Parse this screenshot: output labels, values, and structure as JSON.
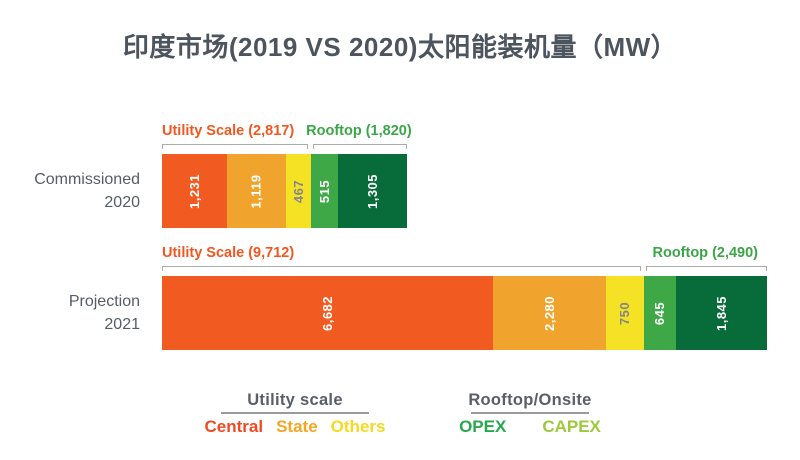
{
  "title": "印度市场(2019 VS 2020)太阳能装机量（MW）",
  "colors": {
    "title_text": "#4C545E",
    "axis_text": "#565D66",
    "bracket_line": "#ACACAC",
    "utility_bracket_label": "#F1571F",
    "rooftop_bracket_label": "#3BA648",
    "legend_title_text": "#585F68",
    "legend_underline": "#9B9B9B"
  },
  "chart_data": {
    "type": "bar",
    "stacked": true,
    "orientation": "horizontal",
    "unit": "MW",
    "title": "印度市场(2019 VS 2020)太阳能装机量（MW）",
    "categories": [
      "Commissioned 2020",
      "Projection 2021"
    ],
    "category_lines": [
      [
        "Commissioned",
        "2020"
      ],
      [
        "Projection",
        "2021"
      ]
    ],
    "series": [
      {
        "name": "Central",
        "group": "Utility scale",
        "values": [
          1231,
          6682
        ],
        "display": [
          "1,231",
          "6,682"
        ],
        "bar_color": "#F15B22",
        "value_label_color": "#FFFFFF"
      },
      {
        "name": "State",
        "group": "Utility scale",
        "values": [
          1119,
          2280
        ],
        "display": [
          "1,119",
          "2,280"
        ],
        "bar_color": "#F1A42D",
        "value_label_color": "#FFFFFF"
      },
      {
        "name": "Others",
        "group": "Utility scale",
        "values": [
          467,
          750
        ],
        "display": [
          "467",
          "750"
        ],
        "bar_color": "#F5E224",
        "value_label_color": "#83858B"
      },
      {
        "name": "OPEX",
        "group": "Rooftop/Onsite",
        "values": [
          515,
          645
        ],
        "display": [
          "515",
          "645"
        ],
        "bar_color": "#3EA846",
        "value_label_color": "#FFFFFF"
      },
      {
        "name": "CAPEX",
        "group": "Rooftop/Onsite",
        "values": [
          1305,
          1845
        ],
        "display": [
          "1,305",
          "1,845"
        ],
        "bar_color": "#076B3A",
        "value_label_color": "#FFFFFF"
      }
    ],
    "group_totals": [
      {
        "category": "Commissioned 2020",
        "utility_scale": 2817,
        "rooftop": 1820
      },
      {
        "category": "Projection 2021",
        "utility_scale": 9712,
        "rooftop": 2490
      }
    ],
    "bracket_labels": [
      {
        "utility": "Utility Scale (2,817)",
        "rooftop": "Rooftop (1,820)"
      },
      {
        "utility": "Utility Scale (9,712)",
        "rooftop": "Rooftop (2,490)"
      }
    ],
    "legend_position": "bottom",
    "grid": false
  },
  "legend": {
    "groups": [
      {
        "title": "Utility scale",
        "items": [
          {
            "label": "Central",
            "color": "#EE4B23"
          },
          {
            "label": "State",
            "color": "#F6A525"
          },
          {
            "label": "Others",
            "color": "#F6D922"
          }
        ]
      },
      {
        "title": "Rooftop/Onsite",
        "items": [
          {
            "label": "OPEX",
            "color": "#27A84D"
          },
          {
            "label": "CAPEX",
            "color": "#9DC93A"
          }
        ]
      }
    ]
  }
}
